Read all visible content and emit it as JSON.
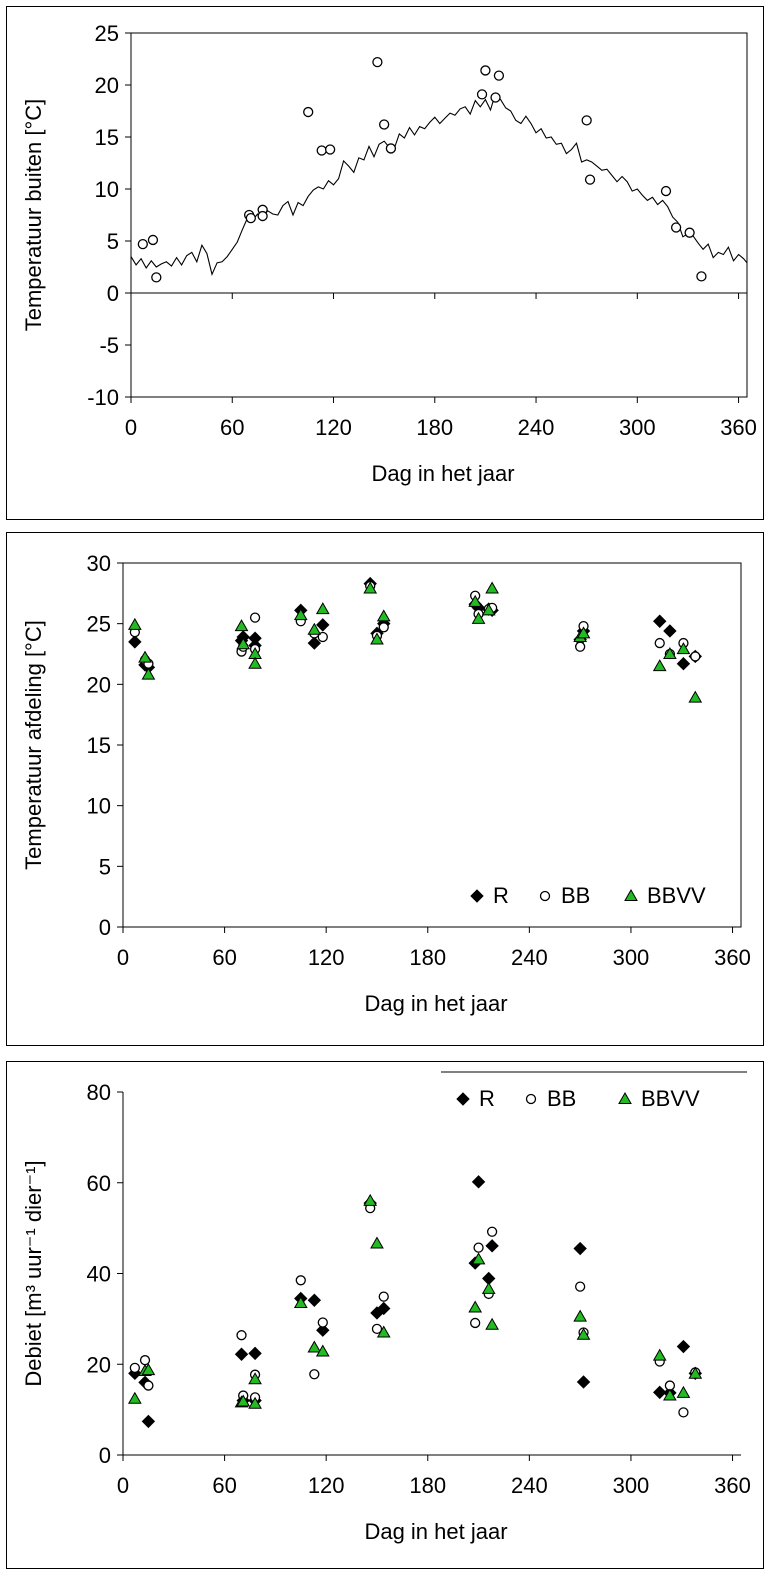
{
  "chart_data": [
    {
      "type": "scatter",
      "title": "",
      "xlabel": "Dag in het jaar",
      "ylabel": "Temperatuur buiten [°C]",
      "xlim": [
        0,
        365
      ],
      "ylim": [
        -10,
        25
      ],
      "xticks": [
        0,
        60,
        120,
        180,
        240,
        300,
        360
      ],
      "yticks": [
        -10,
        -5,
        0,
        5,
        10,
        15,
        20,
        25
      ],
      "grid": false,
      "legend": null,
      "line": {
        "x": [
          0,
          3,
          6,
          9,
          12,
          15,
          18,
          21,
          24,
          27,
          30,
          33,
          36,
          39,
          42,
          45,
          48,
          51,
          54,
          57,
          60,
          63,
          66,
          69,
          72,
          75,
          78,
          81,
          84,
          87,
          90,
          93,
          96,
          99,
          102,
          105,
          108,
          111,
          114,
          117,
          120,
          123,
          126,
          129,
          132,
          135,
          138,
          141,
          144,
          147,
          150,
          153,
          156,
          159,
          162,
          165,
          168,
          171,
          174,
          177,
          180,
          183,
          186,
          189,
          192,
          195,
          198,
          201,
          204,
          207,
          210,
          213,
          216,
          219,
          222,
          225,
          228,
          231,
          234,
          237,
          240,
          243,
          246,
          249,
          252,
          255,
          258,
          261,
          264,
          267,
          270,
          273,
          276,
          279,
          282,
          285,
          288,
          291,
          294,
          297,
          300,
          303,
          306,
          309,
          312,
          315,
          318,
          321,
          324,
          327,
          330,
          333,
          336,
          339,
          342,
          345,
          348,
          351,
          354,
          357,
          360,
          363,
          365
        ],
        "y": [
          3.5,
          2.7,
          3.3,
          2.4,
          3.1,
          2.5,
          2.8,
          3.0,
          2.6,
          3.4,
          2.7,
          3.6,
          3.9,
          3.0,
          4.6,
          3.8,
          1.8,
          2.9,
          3.0,
          3.5,
          4.2,
          4.9,
          6.1,
          7.2,
          7.0,
          7.6,
          7.3,
          7.9,
          7.6,
          7.5,
          8.4,
          8.8,
          7.5,
          8.7,
          8.4,
          9.3,
          9.9,
          10.2,
          10.0,
          10.8,
          10.4,
          11.0,
          12.7,
          12.2,
          11.6,
          13.0,
          12.8,
          14.1,
          13.1,
          14.3,
          14.6,
          14.0,
          13.9,
          15.3,
          14.9,
          15.9,
          15.2,
          16.0,
          15.8,
          16.4,
          16.9,
          16.3,
          16.8,
          17.3,
          17.1,
          17.7,
          17.9,
          17.2,
          18.5,
          17.9,
          18.6,
          17.6,
          19.2,
          18.6,
          17.8,
          17.5,
          16.6,
          16.3,
          17.0,
          16.3,
          15.4,
          15.8,
          14.9,
          15.0,
          14.3,
          14.4,
          13.4,
          13.8,
          14.4,
          12.6,
          12.8,
          12.6,
          12.2,
          11.8,
          11.9,
          11.3,
          10.7,
          11.2,
          10.7,
          9.8,
          10.0,
          9.4,
          8.9,
          9.2,
          8.5,
          8.9,
          8.3,
          7.3,
          6.8,
          5.4,
          5.7,
          5.5,
          4.8,
          4.2,
          4.7,
          3.4,
          3.9,
          3.7,
          4.4,
          3.1,
          3.7,
          3.3,
          2.9
        ]
      },
      "series": [
        {
          "marker": "open-circle",
          "points": [
            [
              7,
              4.7
            ],
            [
              13,
              5.1
            ],
            [
              15,
              1.5
            ],
            [
              70,
              7.5
            ],
            [
              71,
              7.2
            ],
            [
              78,
              8.0
            ],
            [
              78,
              7.4
            ],
            [
              105,
              17.4
            ],
            [
              113,
              13.7
            ],
            [
              118,
              13.8
            ],
            [
              146,
              22.2
            ],
            [
              150,
              16.2
            ],
            [
              154,
              13.9
            ],
            [
              208,
              19.1
            ],
            [
              210,
              21.4
            ],
            [
              216,
              18.8
            ],
            [
              218,
              20.9
            ],
            [
              270,
              16.6
            ],
            [
              272,
              10.9
            ],
            [
              317,
              9.8
            ],
            [
              323,
              6.3
            ],
            [
              331,
              5.8
            ],
            [
              338,
              1.6
            ]
          ]
        }
      ]
    },
    {
      "type": "scatter",
      "title": "",
      "xlabel": "Dag in het jaar",
      "ylabel": "Temperatuur afdeling [°C]",
      "xlim": [
        0,
        365
      ],
      "ylim": [
        0,
        30
      ],
      "xticks": [
        0,
        60,
        120,
        180,
        240,
        300,
        360
      ],
      "yticks": [
        0,
        5,
        10,
        15,
        20,
        25,
        30
      ],
      "grid": false,
      "legend": {
        "position": "bottom-right",
        "labels": [
          "R",
          "BB",
          "BBVV"
        ]
      },
      "series": [
        {
          "name": "R",
          "marker": "filled-diamond",
          "color": "#000000",
          "points": [
            [
              7,
              23.5
            ],
            [
              13,
              21.6
            ],
            [
              15,
              21.4
            ],
            [
              70,
              23.6
            ],
            [
              71,
              23.9
            ],
            [
              78,
              23.2
            ],
            [
              78,
              23.8
            ],
            [
              105,
              26.1
            ],
            [
              113,
              23.4
            ],
            [
              118,
              24.9
            ],
            [
              146,
              28.3
            ],
            [
              150,
              24.2
            ],
            [
              154,
              25.0
            ],
            [
              208,
              26.6
            ],
            [
              210,
              26.3
            ],
            [
              216,
              26.2
            ],
            [
              218,
              26.1
            ],
            [
              270,
              23.7
            ],
            [
              272,
              24.4
            ],
            [
              317,
              25.2
            ],
            [
              323,
              24.4
            ],
            [
              331,
              21.7
            ],
            [
              338,
              22.3
            ]
          ]
        },
        {
          "name": "BB",
          "marker": "open-circle",
          "color": "#ffffff",
          "points": [
            [
              7,
              24.3
            ],
            [
              13,
              22.0
            ],
            [
              15,
              21.7
            ],
            [
              70,
              22.7
            ],
            [
              71,
              23.1
            ],
            [
              78,
              25.5
            ],
            [
              78,
              22.9
            ],
            [
              105,
              25.2
            ],
            [
              113,
              24.2
            ],
            [
              118,
              23.9
            ],
            [
              146,
              28.1
            ],
            [
              150,
              24.0
            ],
            [
              154,
              24.7
            ],
            [
              208,
              27.3
            ],
            [
              210,
              25.8
            ],
            [
              216,
              26.2
            ],
            [
              218,
              26.3
            ],
            [
              270,
              23.1
            ],
            [
              272,
              24.8
            ],
            [
              317,
              23.4
            ],
            [
              323,
              22.5
            ],
            [
              331,
              23.4
            ],
            [
              338,
              22.3
            ]
          ]
        },
        {
          "name": "BBVV",
          "marker": "filled-triangle",
          "color": "#22bb22",
          "points": [
            [
              7,
              24.9
            ],
            [
              13,
              22.2
            ],
            [
              15,
              20.8
            ],
            [
              70,
              24.8
            ],
            [
              71,
              23.3
            ],
            [
              78,
              22.5
            ],
            [
              78,
              21.7
            ],
            [
              105,
              25.7
            ],
            [
              113,
              24.5
            ],
            [
              118,
              26.2
            ],
            [
              146,
              27.9
            ],
            [
              150,
              23.7
            ],
            [
              154,
              25.6
            ],
            [
              208,
              26.8
            ],
            [
              210,
              25.4
            ],
            [
              216,
              26.1
            ],
            [
              218,
              27.9
            ],
            [
              270,
              23.9
            ],
            [
              272,
              24.2
            ],
            [
              317,
              21.5
            ],
            [
              323,
              22.5
            ],
            [
              331,
              22.9
            ],
            [
              338,
              18.9
            ]
          ]
        }
      ]
    },
    {
      "type": "scatter",
      "title": "",
      "xlabel": "Dag in het jaar",
      "ylabel": "Debiet [m³ uur⁻¹ dier⁻¹]",
      "xlim": [
        0,
        365
      ],
      "ylim": [
        0,
        80
      ],
      "xticks": [
        0,
        60,
        120,
        180,
        240,
        300,
        360
      ],
      "yticks": [
        0,
        20,
        40,
        60,
        80
      ],
      "grid": false,
      "legend": {
        "position": "top-right",
        "labels": [
          "R",
          "BB",
          "BBVV"
        ]
      },
      "series": [
        {
          "name": "R",
          "marker": "filled-diamond",
          "color": "#000000",
          "points": [
            [
              7,
              18
            ],
            [
              13,
              16
            ],
            [
              15,
              7.4
            ],
            [
              70,
              22.2
            ],
            [
              71,
              12
            ],
            [
              78,
              22.4
            ],
            [
              78,
              12
            ],
            [
              105,
              34.5
            ],
            [
              113,
              34.1
            ],
            [
              118,
              27.5
            ],
            [
              146,
              55.5
            ],
            [
              150,
              31.3
            ],
            [
              154,
              32.3
            ],
            [
              208,
              42.3
            ],
            [
              210,
              60.2
            ],
            [
              216,
              38.9
            ],
            [
              218,
              46.1
            ],
            [
              270,
              45.5
            ],
            [
              272,
              16.1
            ],
            [
              317,
              13.8
            ],
            [
              323,
              13.7
            ],
            [
              331,
              23.9
            ],
            [
              338,
              18
            ]
          ]
        },
        {
          "name": "BB",
          "marker": "open-circle",
          "color": "#ffffff",
          "points": [
            [
              7,
              19.2
            ],
            [
              13,
              20.9
            ],
            [
              15,
              15.3
            ],
            [
              70,
              26.4
            ],
            [
              71,
              13.1
            ],
            [
              78,
              17.7
            ],
            [
              78,
              12.7
            ],
            [
              105,
              38.5
            ],
            [
              113,
              17.8
            ],
            [
              118,
              29.2
            ],
            [
              146,
              54.4
            ],
            [
              150,
              27.8
            ],
            [
              154,
              34.9
            ],
            [
              208,
              29.1
            ],
            [
              210,
              45.7
            ],
            [
              216,
              35.5
            ],
            [
              218,
              49.2
            ],
            [
              270,
              37.1
            ],
            [
              272,
              27
            ],
            [
              317,
              20.6
            ],
            [
              323,
              15.3
            ],
            [
              331,
              9.4
            ],
            [
              338,
              18.2
            ]
          ]
        },
        {
          "name": "BBVV",
          "marker": "filled-triangle",
          "color": "#22bb22",
          "points": [
            [
              7,
              12.4
            ],
            [
              13,
              18.5
            ],
            [
              15,
              18.7
            ],
            [
              70,
              11.6
            ],
            [
              71,
              11.8
            ],
            [
              78,
              16.7
            ],
            [
              78,
              11.3
            ],
            [
              105,
              33.5
            ],
            [
              113,
              23.7
            ],
            [
              118,
              22.8
            ],
            [
              146,
              56
            ],
            [
              150,
              46.6
            ],
            [
              154,
              27
            ],
            [
              208,
              32.5
            ],
            [
              210,
              43.1
            ],
            [
              216,
              36.6
            ],
            [
              218,
              28.7
            ],
            [
              270,
              30.5
            ],
            [
              272,
              26.5
            ],
            [
              317,
              21.9
            ],
            [
              323,
              13.1
            ],
            [
              331,
              13.7
            ],
            [
              338,
              17.9
            ]
          ]
        }
      ]
    }
  ]
}
